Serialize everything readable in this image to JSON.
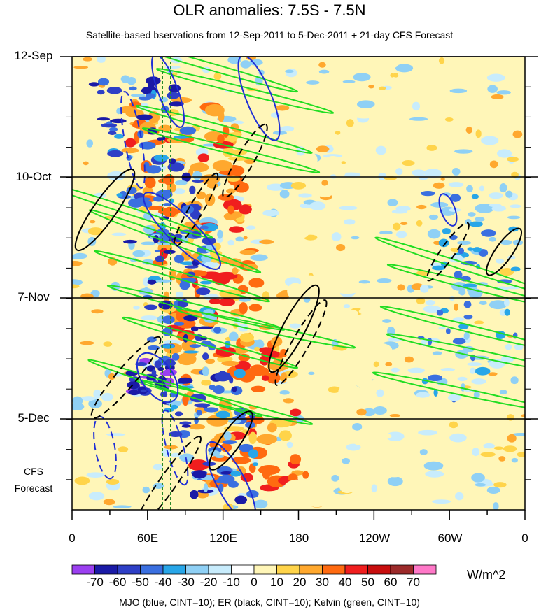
{
  "chart_data": {
    "type": "heatmap",
    "title": "OLR anomalies: 7.5S - 7.5N",
    "subtitle": "Satellite-based bservations from 12-Sep-2011 to 5-Dec-2011 + 21-day CFS Forecast",
    "y_ticks": [
      "12-Sep",
      "10-Oct",
      "7-Nov",
      "5-Dec"
    ],
    "forecast_label": [
      "CFS",
      "Forecast"
    ],
    "x_ticks": [
      "0",
      "60E",
      "120E",
      "180",
      "120W",
      "60W",
      "0"
    ],
    "colorbar": {
      "levels": [
        -70,
        -60,
        -50,
        -40,
        -30,
        -20,
        -10,
        0,
        10,
        20,
        30,
        40,
        50,
        60,
        70
      ],
      "colors": [
        "#9b3ff0",
        "#1a1aa6",
        "#2e3fc6",
        "#3a6fe0",
        "#28a6e8",
        "#8fd0f5",
        "#c8ecfc",
        "#ffffff",
        "#fff6b8",
        "#ffd44a",
        "#ffa82e",
        "#ff6a10",
        "#f01e1e",
        "#c80e0e",
        "#9c2a2a",
        "#ff78c8"
      ],
      "units": "W/m^2"
    },
    "footer": "MJO (blue, CINT=10); ER (black, CINT=10); Kelvin (green, CINT=10)",
    "contour_colors": {
      "MJO": "#1f2fd6",
      "ER": "#000000",
      "Kelvin": "#22dd22"
    }
  }
}
